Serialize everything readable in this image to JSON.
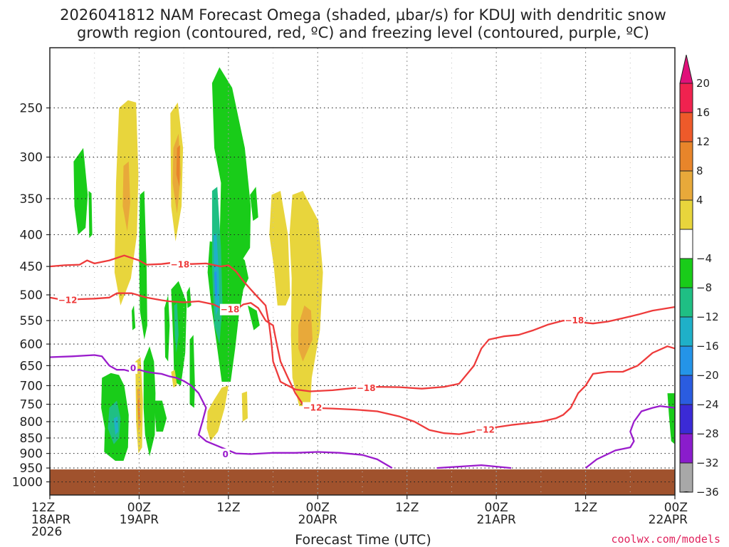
{
  "title_line1": "2026041812 NAM Forecast Omega (shaded, μbar/s) for KDUJ with dendritic snow",
  "title_line2": "growth region (contoured, red, ºC) and freezing level (contoured, purple, ºC)",
  "credit": "coolwx.com/models",
  "chart_data": {
    "type": "heatmap",
    "title": "2026041812 NAM Forecast Omega (shaded, μbar/s) for KDUJ with dendritic snow growth region (contoured, red, ºC) and freezing level (contoured, purple, ºC)",
    "xlabel": "Forecast Time (UTC)",
    "ylabel": "",
    "x_range_hours": [
      0,
      84
    ],
    "y_range_hPa": [
      1050,
      200
    ],
    "y_scale": "log-pressure",
    "grid": true,
    "x_ticks": [
      {
        "hour": 0,
        "lines": [
          "12Z",
          "18APR",
          "2026"
        ]
      },
      {
        "hour": 12,
        "lines": [
          "00Z",
          "19APR"
        ]
      },
      {
        "hour": 24,
        "lines": [
          "12Z"
        ]
      },
      {
        "hour": 36,
        "lines": [
          "00Z",
          "20APR"
        ]
      },
      {
        "hour": 48,
        "lines": [
          "12Z"
        ]
      },
      {
        "hour": 60,
        "lines": [
          "00Z",
          "21APR"
        ]
      },
      {
        "hour": 72,
        "lines": [
          "12Z"
        ]
      },
      {
        "hour": 84,
        "lines": [
          "00Z",
          "22APR"
        ]
      }
    ],
    "y_ticks": [
      250,
      300,
      350,
      400,
      450,
      500,
      550,
      600,
      650,
      700,
      750,
      800,
      850,
      900,
      950,
      1000
    ],
    "grid_x_hours": [
      6,
      18,
      30,
      42,
      54,
      66,
      78
    ],
    "colorbar": {
      "labels": [
        "20",
        "16",
        "12",
        "8",
        "4",
        "−4",
        "−8",
        "−12",
        "−16",
        "−20",
        "−24",
        "−28",
        "−32",
        "−36"
      ],
      "colors": [
        "#f0224f",
        "#ee5a2a",
        "#e8852a",
        "#e8a93a",
        "#e8d53c",
        "#ffffff",
        "#19cc19",
        "#1fbf84",
        "#1fb0c8",
        "#2494e8",
        "#2a5ce0",
        "#3b2ad6",
        "#8a1ccc",
        "#a8a8a8"
      ],
      "top_cap_color": "#e0107a",
      "bottom_cap_color": "#000000"
    },
    "ground": {
      "top_hPa": 955,
      "color": "#a0522d"
    },
    "series": [
      {
        "name": "red",
        "color": "#ee3b3b",
        "contours": [
          {
            "label": "−18",
            "points": [
              [
                0,
                450
              ],
              [
                2,
                448
              ],
              [
                4,
                447
              ],
              [
                5,
                440
              ],
              [
                6,
                445
              ],
              [
                8,
                440
              ],
              [
                10,
                432
              ],
              [
                12,
                440
              ],
              [
                13,
                447
              ],
              [
                15,
                446
              ],
              [
                17,
                443
              ],
              [
                19,
                446
              ],
              [
                21,
                445
              ],
              [
                23,
                450
              ],
              [
                24,
                448
              ],
              [
                25,
                458
              ],
              [
                26,
                475
              ],
              [
                27,
                490
              ],
              [
                28,
                505
              ],
              [
                29,
                520
              ],
              [
                29.5,
                560
              ],
              [
                29.8,
                600
              ],
              [
                30,
                640
              ],
              [
                31,
                690
              ],
              [
                33,
                710
              ],
              [
                35,
                715
              ],
              [
                38,
                712
              ],
              [
                41,
                706
              ],
              [
                44,
                703
              ],
              [
                47,
                704
              ],
              [
                50,
                708
              ],
              [
                53,
                703
              ],
              [
                55,
                695
              ],
              [
                57,
                650
              ],
              [
                58,
                610
              ],
              [
                59,
                590
              ],
              [
                61,
                583
              ],
              [
                63,
                580
              ],
              [
                65,
                570
              ],
              [
                67,
                558
              ],
              [
                69,
                550
              ],
              [
                71,
                553
              ],
              [
                73,
                556
              ],
              [
                75,
                552
              ],
              [
                77,
                545
              ],
              [
                79,
                538
              ],
              [
                81,
                530
              ],
              [
                84,
                523
              ]
            ]
          },
          {
            "label": "−12",
            "points": [
              [
                0,
                505
              ],
              [
                2,
                510
              ],
              [
                4,
                508
              ],
              [
                6,
                507
              ],
              [
                8,
                505
              ],
              [
                9,
                497
              ],
              [
                11,
                497
              ],
              [
                13,
                505
              ],
              [
                15,
                510
              ],
              [
                16,
                512
              ],
              [
                18,
                514
              ],
              [
                20,
                512
              ],
              [
                22,
                518
              ],
              [
                23,
                525
              ],
              [
                24,
                530
              ],
              [
                25,
                528
              ],
              [
                26,
                518
              ],
              [
                27,
                515
              ],
              [
                28,
                525
              ],
              [
                29,
                550
              ],
              [
                30,
                560
              ],
              [
                30.5,
                600
              ],
              [
                31,
                640
              ],
              [
                32,
                680
              ],
              [
                33,
                720
              ],
              [
                34,
                750
              ],
              [
                35,
                760
              ],
              [
                38,
                762
              ],
              [
                41,
                765
              ],
              [
                44,
                770
              ],
              [
                47,
                785
              ],
              [
                49,
                800
              ],
              [
                51,
                825
              ],
              [
                53,
                835
              ],
              [
                55,
                838
              ],
              [
                57,
                830
              ],
              [
                59,
                820
              ],
              [
                62,
                810
              ],
              [
                64,
                805
              ],
              [
                66,
                800
              ],
              [
                68,
                790
              ],
              [
                69,
                780
              ],
              [
                70,
                760
              ],
              [
                71,
                720
              ],
              [
                72,
                700
              ],
              [
                73,
                670
              ],
              [
                75,
                665
              ],
              [
                77,
                665
              ],
              [
                79,
                650
              ],
              [
                81,
                620
              ],
              [
                83,
                605
              ],
              [
                84,
                610
              ]
            ]
          }
        ]
      },
      {
        "name": "purple",
        "color": "#9a1ccc",
        "contours": [
          {
            "label": "0",
            "points": [
              [
                0,
                630
              ],
              [
                3,
                628
              ],
              [
                6,
                625
              ],
              [
                7,
                628
              ],
              [
                8,
                650
              ],
              [
                9,
                660
              ],
              [
                10,
                660
              ],
              [
                11,
                665
              ],
              [
                12,
                660
              ],
              [
                13,
                665
              ],
              [
                14,
                668
              ],
              [
                15,
                670
              ],
              [
                16,
                676
              ],
              [
                17,
                680
              ],
              [
                18,
                688
              ],
              [
                19,
                700
              ],
              [
                20,
                720
              ],
              [
                21,
                760
              ],
              [
                20.5,
                800
              ],
              [
                20,
                840
              ],
              [
                21,
                860
              ],
              [
                23,
                880
              ],
              [
                25,
                900
              ],
              [
                27,
                902
              ],
              [
                30,
                898
              ],
              [
                33,
                898
              ],
              [
                36,
                895
              ],
              [
                39,
                898
              ],
              [
                42,
                905
              ],
              [
                44,
                920
              ],
              [
                46,
                950
              ]
            ]
          },
          {
            "label": "",
            "points": [
              [
                52,
                950
              ],
              [
                55,
                945
              ],
              [
                58,
                940
              ],
              [
                60,
                945
              ],
              [
                62,
                950
              ]
            ]
          },
          {
            "label": "",
            "points": [
              [
                72,
                950
              ],
              [
                73.5,
                920
              ],
              [
                76,
                890
              ],
              [
                78,
                880
              ],
              [
                78.5,
                860
              ],
              [
                78,
                830
              ],
              [
                78.5,
                800
              ],
              [
                79.5,
                770
              ],
              [
                81,
                760
              ],
              [
                82,
                755
              ],
              [
                84,
                760
              ]
            ]
          }
        ]
      }
    ]
  }
}
